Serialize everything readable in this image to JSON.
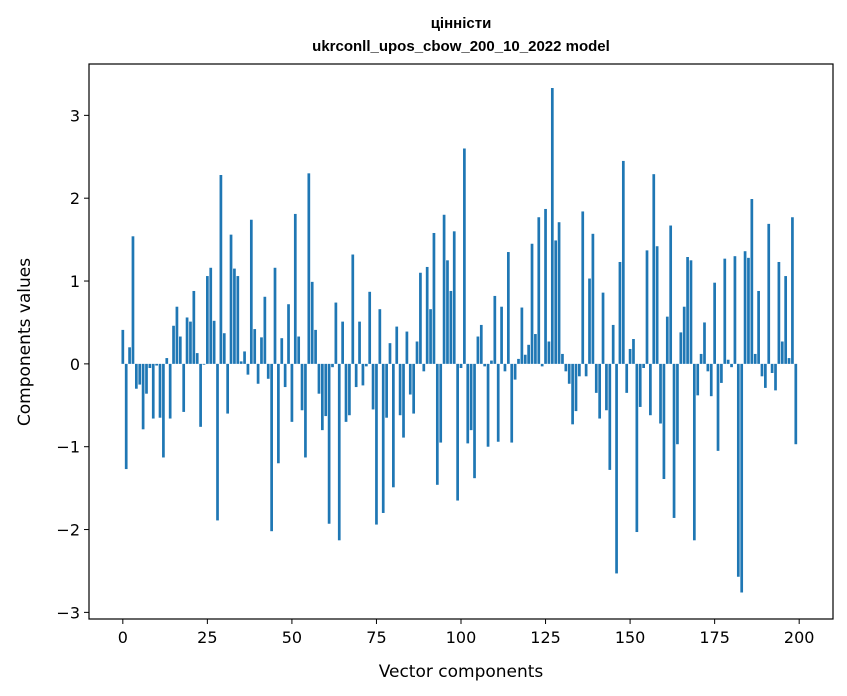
{
  "chart_data": {
    "type": "bar",
    "title": "цінністи",
    "subtitle": "ukrconll_upos_cbow_200_10_2022 model",
    "xlabel": "Vector components",
    "ylabel": "Components values",
    "xlim": [
      -10,
      210
    ],
    "ylim": [
      -3.08,
      3.62
    ],
    "xticks": [
      0,
      25,
      50,
      75,
      100,
      125,
      150,
      175,
      200
    ],
    "xtick_labels": [
      "0",
      "25",
      "50",
      "75",
      "100",
      "125",
      "150",
      "175",
      "200"
    ],
    "yticks": [
      -3,
      -2,
      -1,
      0,
      1,
      2,
      3
    ],
    "ytick_labels": [
      "−3",
      "−2",
      "−1",
      "0",
      "1",
      "2",
      "3"
    ],
    "bar_color": "#1f77b4",
    "x": [
      0,
      1,
      2,
      3,
      4,
      5,
      6,
      7,
      8,
      9,
      10,
      11,
      12,
      13,
      14,
      15,
      16,
      17,
      18,
      19,
      20,
      21,
      22,
      23,
      24,
      25,
      26,
      27,
      28,
      29,
      30,
      31,
      32,
      33,
      34,
      35,
      36,
      37,
      38,
      39,
      40,
      41,
      42,
      43,
      44,
      45,
      46,
      47,
      48,
      49,
      50,
      51,
      52,
      53,
      54,
      55,
      56,
      57,
      58,
      59,
      60,
      61,
      62,
      63,
      64,
      65,
      66,
      67,
      68,
      69,
      70,
      71,
      72,
      73,
      74,
      75,
      76,
      77,
      78,
      79,
      80,
      81,
      82,
      83,
      84,
      85,
      86,
      87,
      88,
      89,
      90,
      91,
      92,
      93,
      94,
      95,
      96,
      97,
      98,
      99,
      100,
      101,
      102,
      103,
      104,
      105,
      106,
      107,
      108,
      109,
      110,
      111,
      112,
      113,
      114,
      115,
      116,
      117,
      118,
      119,
      120,
      121,
      122,
      123,
      124,
      125,
      126,
      127,
      128,
      129,
      130,
      131,
      132,
      133,
      134,
      135,
      136,
      137,
      138,
      139,
      140,
      141,
      142,
      143,
      144,
      145,
      146,
      147,
      148,
      149,
      150,
      151,
      152,
      153,
      154,
      155,
      156,
      157,
      158,
      159,
      160,
      161,
      162,
      163,
      164,
      165,
      166,
      167,
      168,
      169,
      170,
      171,
      172,
      173,
      174,
      175,
      176,
      177,
      178,
      179,
      180,
      181,
      182,
      183,
      184,
      185,
      186,
      187,
      188,
      189,
      190,
      191,
      192,
      193,
      194,
      195,
      196,
      197,
      198,
      199
    ],
    "values": [
      0.41,
      -1.27,
      0.2,
      1.54,
      -0.3,
      -0.25,
      -0.79,
      -0.36,
      -0.05,
      -0.66,
      -0.02,
      -0.65,
      -1.13,
      0.07,
      -0.66,
      0.46,
      0.69,
      0.33,
      -0.58,
      0.56,
      0.51,
      0.88,
      0.13,
      -0.76,
      -0.01,
      1.06,
      1.16,
      0.52,
      -1.89,
      2.28,
      0.37,
      -0.6,
      1.56,
      1.15,
      1.06,
      0.03,
      0.15,
      -0.13,
      1.74,
      0.42,
      -0.24,
      0.32,
      0.81,
      -0.18,
      -2.02,
      1.16,
      -1.2,
      0.31,
      -0.28,
      0.72,
      -0.7,
      1.81,
      0.33,
      -0.56,
      -1.13,
      2.3,
      0.99,
      0.41,
      -0.36,
      -0.8,
      -0.63,
      -1.93,
      -0.04,
      0.74,
      -2.13,
      0.51,
      -0.7,
      -0.62,
      1.32,
      -0.28,
      0.51,
      -0.26,
      -0.03,
      0.87,
      -0.55,
      -1.94,
      0.66,
      -1.8,
      -0.65,
      0.25,
      -1.49,
      0.45,
      -0.62,
      -0.89,
      0.39,
      -0.37,
      -0.6,
      0.27,
      1.1,
      -0.09,
      1.17,
      0.66,
      1.58,
      -1.46,
      -0.95,
      1.8,
      1.25,
      0.88,
      1.6,
      -1.65,
      -0.05,
      2.6,
      -0.96,
      -0.8,
      -1.38,
      0.33,
      0.47,
      -0.03,
      -1.0,
      0.04,
      0.82,
      -0.94,
      0.69,
      -0.09,
      1.35,
      -0.95,
      -0.19,
      0.06,
      0.68,
      0.11,
      0.23,
      1.45,
      0.36,
      1.77,
      -0.03,
      1.87,
      0.27,
      3.33,
      1.49,
      1.71,
      0.12,
      -0.09,
      -0.24,
      -0.73,
      -0.57,
      -0.15,
      1.84,
      -0.15,
      1.03,
      1.57,
      -0.35,
      -0.66,
      0.86,
      -0.56,
      -1.28,
      0.47,
      -2.53,
      1.23,
      2.45,
      -0.35,
      0.18,
      0.3,
      -2.03,
      -0.52,
      -0.05,
      1.37,
      -0.62,
      2.29,
      1.42,
      -0.72,
      -1.39,
      0.57,
      1.67,
      -1.86,
      -0.97,
      0.38,
      0.69,
      1.29,
      1.25,
      -2.13,
      -0.38,
      0.12,
      0.5,
      -0.09,
      -0.39,
      0.98,
      -1.05,
      -0.23,
      1.27,
      0.05,
      -0.04,
      1.3,
      -2.57,
      -2.76,
      1.36,
      1.28,
      1.99,
      0.12,
      0.88,
      -0.15,
      -0.29,
      1.69,
      -0.11,
      -0.32,
      1.23,
      0.27,
      1.06,
      0.07,
      1.77,
      -0.97
    ]
  }
}
